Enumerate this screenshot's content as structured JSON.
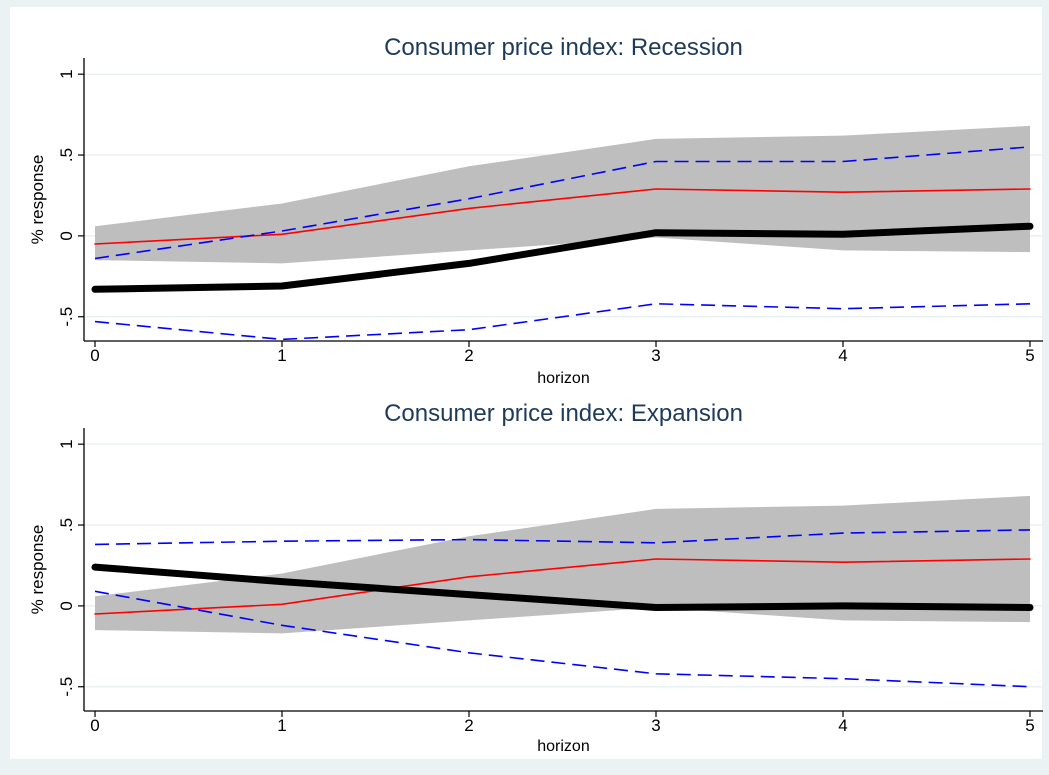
{
  "chart_data": [
    {
      "type": "line",
      "title": "Consumer price index: Recession",
      "xlabel": "horizon",
      "ylabel": "% response",
      "x": [
        0,
        1,
        2,
        3,
        4,
        5
      ],
      "x_ticks": [
        "0",
        "1",
        "2",
        "3",
        "4",
        "5"
      ],
      "y_ticks": [
        {
          "v": -0.5,
          "label": "-.5"
        },
        {
          "v": 0,
          "label": "0"
        },
        {
          "v": 0.5,
          "label": ".5"
        },
        {
          "v": 1,
          "label": "1"
        }
      ],
      "xlim": [
        0,
        5
      ],
      "ylim": [
        -0.65,
        1.1
      ],
      "grid": true,
      "band": {
        "lower": [
          -0.15,
          -0.17,
          -0.09,
          -0.01,
          -0.09,
          -0.1
        ],
        "upper": [
          0.06,
          0.2,
          0.43,
          0.6,
          0.62,
          0.68
        ],
        "color": "#bebebe"
      },
      "series": [
        {
          "values": [
            -0.05,
            0.01,
            0.17,
            0.29,
            0.27,
            0.29
          ],
          "color": "#ff0000",
          "style": "solid",
          "width": 1.6
        },
        {
          "values": [
            -0.14,
            0.03,
            0.23,
            0.46,
            0.46,
            0.55
          ],
          "color": "#0000ff",
          "style": "dashed",
          "width": 1.6
        },
        {
          "values": [
            -0.53,
            -0.64,
            -0.58,
            -0.42,
            -0.45,
            -0.42
          ],
          "color": "#0000ff",
          "style": "dashed",
          "width": 1.6
        },
        {
          "values": [
            -0.33,
            -0.31,
            -0.17,
            0.02,
            0.01,
            0.06
          ],
          "color": "#000000",
          "style": "solid",
          "width": 7
        }
      ]
    },
    {
      "type": "line",
      "title": "Consumer price index: Expansion",
      "xlabel": "horizon",
      "ylabel": "% response",
      "x": [
        0,
        1,
        2,
        3,
        4,
        5
      ],
      "x_ticks": [
        "0",
        "1",
        "2",
        "3",
        "4",
        "5"
      ],
      "y_ticks": [
        {
          "v": -0.5,
          "label": "-.5"
        },
        {
          "v": 0,
          "label": "0"
        },
        {
          "v": 0.5,
          "label": ".5"
        },
        {
          "v": 1,
          "label": "1"
        }
      ],
      "xlim": [
        0,
        5
      ],
      "ylim": [
        -0.65,
        1.1
      ],
      "grid": true,
      "band": {
        "lower": [
          -0.15,
          -0.17,
          -0.09,
          -0.01,
          -0.09,
          -0.1
        ],
        "upper": [
          0.06,
          0.2,
          0.43,
          0.6,
          0.62,
          0.68
        ],
        "color": "#bebebe"
      },
      "series": [
        {
          "values": [
            -0.05,
            0.01,
            0.18,
            0.29,
            0.27,
            0.29
          ],
          "color": "#ff0000",
          "style": "solid",
          "width": 1.6
        },
        {
          "values": [
            0.38,
            0.4,
            0.41,
            0.39,
            0.45,
            0.47
          ],
          "color": "#0000ff",
          "style": "dashed",
          "width": 1.6
        },
        {
          "values": [
            0.09,
            -0.12,
            -0.29,
            -0.42,
            -0.45,
            -0.5
          ],
          "color": "#0000ff",
          "style": "dashed",
          "width": 1.6
        },
        {
          "values": [
            0.24,
            0.15,
            0.07,
            -0.01,
            0.0,
            -0.01
          ],
          "color": "#000000",
          "style": "solid",
          "width": 7
        }
      ]
    }
  ]
}
